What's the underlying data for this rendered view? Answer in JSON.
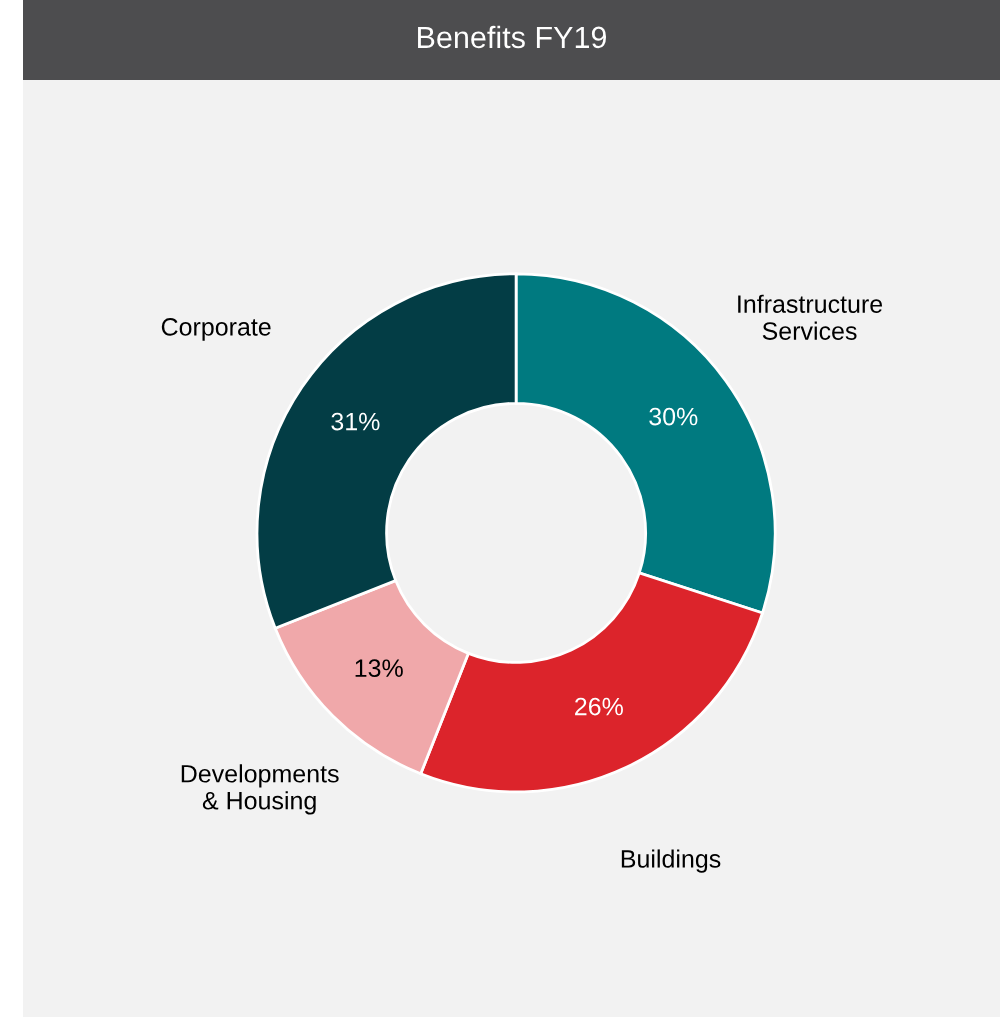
{
  "chart_data": {
    "type": "donut",
    "title": "Benefits FY19",
    "categories": [
      "Infrastructure\nServices",
      "Buildings",
      "Developments\n& Housing",
      "Corporate"
    ],
    "values": [
      30,
      26,
      13,
      31
    ],
    "colors": [
      "#007a80",
      "#dc242b",
      "#f0a8aa",
      "#033d45"
    ],
    "value_labels": [
      "30%",
      "26%",
      "13%",
      "31%"
    ]
  }
}
